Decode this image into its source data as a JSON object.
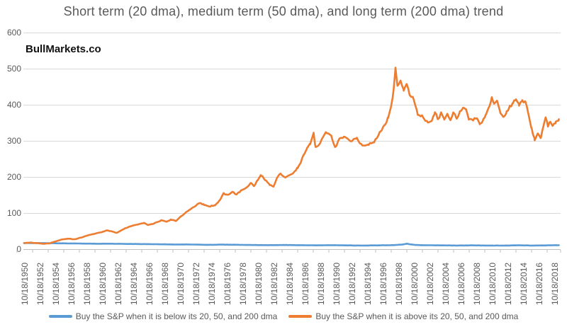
{
  "title": "Short term (20 dma), medium term (50 dma), and long term (200 dma) trend",
  "watermark": "BullMarkets.co",
  "colors": {
    "series_below": "#5B9BD5",
    "series_above": "#ED7D31",
    "gridline": "#D9D9D9",
    "axis_line": "#BFBFBF",
    "text": "#595959",
    "watermark_text": "#111111",
    "background": "#FFFFFF"
  },
  "chart_data": {
    "type": "line",
    "title": "Short term (20 dma), medium term (50 dma), and long term (200 dma) trend",
    "xlabel": "",
    "ylabel": "",
    "grid": true,
    "legend_position": "bottom",
    "y_axis": {
      "min": 0,
      "max": 600,
      "step": 100,
      "tick_labels": [
        "0",
        "100",
        "200",
        "300",
        "400",
        "500",
        "600"
      ]
    },
    "x_axis": {
      "first_label_year": 1950.8,
      "pixels_per_year": 11.0,
      "tick_interval_years": 2,
      "labels": [
        "10/18/1950",
        "10/18/1952",
        "10/18/1954",
        "10/18/1956",
        "10/18/1958",
        "10/18/1960",
        "10/18/1962",
        "10/18/1964",
        "10/18/1966",
        "10/18/1968",
        "10/18/1970",
        "10/18/1972",
        "10/18/1974",
        "10/18/1976",
        "10/18/1978",
        "10/18/1980",
        "10/18/1982",
        "10/18/1984",
        "10/18/1986",
        "10/18/1988",
        "10/18/1990",
        "10/18/1992",
        "10/18/1994",
        "10/18/1996",
        "10/18/1998",
        "10/18/2000",
        "10/18/2002",
        "10/18/2004",
        "10/18/2006",
        "10/18/2008",
        "10/18/2010",
        "10/18/2012",
        "10/18/2014",
        "10/18/2016",
        "10/18/2018"
      ]
    },
    "series": [
      {
        "name": "below",
        "label": "Buy the S&P when it is below its 20, 50, and 200 dma",
        "color": "#5B9BD5",
        "points": [
          [
            1950.7,
            17
          ],
          [
            1952,
            17
          ],
          [
            1954,
            16.5
          ],
          [
            1956,
            16
          ],
          [
            1958,
            15.5
          ],
          [
            1960,
            15
          ],
          [
            1962,
            15
          ],
          [
            1964,
            14.5
          ],
          [
            1966,
            14
          ],
          [
            1968,
            13.5
          ],
          [
            1970,
            13
          ],
          [
            1972,
            13
          ],
          [
            1974,
            12
          ],
          [
            1976,
            12.5
          ],
          [
            1978,
            12
          ],
          [
            1980,
            11.5
          ],
          [
            1982,
            11
          ],
          [
            1984,
            11.5
          ],
          [
            1986,
            11
          ],
          [
            1988,
            10.5
          ],
          [
            1990,
            11
          ],
          [
            1992,
            10.5
          ],
          [
            1994,
            10
          ],
          [
            1996,
            10.5
          ],
          [
            1998,
            11
          ],
          [
            1999.3,
            13
          ],
          [
            1999.8,
            15
          ],
          [
            2000.4,
            13
          ],
          [
            2001,
            11.5
          ],
          [
            2002,
            11
          ],
          [
            2004,
            10.5
          ],
          [
            2006,
            10
          ],
          [
            2008,
            10.5
          ],
          [
            2010,
            10
          ],
          [
            2012,
            10
          ],
          [
            2014,
            10.5
          ],
          [
            2016,
            10
          ],
          [
            2018,
            10.5
          ],
          [
            2019.3,
            11
          ]
        ]
      },
      {
        "name": "above",
        "label": "Buy the S&P when it is above its 20, 50, and 200 dma",
        "color": "#ED7D31",
        "points": [
          [
            1950.7,
            17
          ],
          [
            1951.5,
            18
          ],
          [
            1952.3,
            17
          ],
          [
            1953.2,
            15
          ],
          [
            1954.0,
            16
          ],
          [
            1954.8,
            22
          ],
          [
            1955.6,
            27
          ],
          [
            1956.3,
            29
          ],
          [
            1957.2,
            27
          ],
          [
            1958.0,
            32
          ],
          [
            1958.8,
            38
          ],
          [
            1959.6,
            42
          ],
          [
            1960.5,
            46
          ],
          [
            1961.3,
            52
          ],
          [
            1962.0,
            49
          ],
          [
            1962.6,
            45
          ],
          [
            1963.5,
            56
          ],
          [
            1964.4,
            64
          ],
          [
            1965.4,
            69
          ],
          [
            1966.1,
            73
          ],
          [
            1966.6,
            67
          ],
          [
            1967.5,
            72
          ],
          [
            1968.3,
            80
          ],
          [
            1969.0,
            76
          ],
          [
            1969.6,
            82
          ],
          [
            1970.2,
            78
          ],
          [
            1970.8,
            90
          ],
          [
            1971.5,
            103
          ],
          [
            1972.2,
            112
          ],
          [
            1973.2,
            128
          ],
          [
            1973.8,
            123
          ],
          [
            1974.4,
            118
          ],
          [
            1975.2,
            122
          ],
          [
            1975.8,
            135
          ],
          [
            1976.3,
            155
          ],
          [
            1976.8,
            150
          ],
          [
            1977.4,
            158
          ],
          [
            1978.0,
            152
          ],
          [
            1978.6,
            163
          ],
          [
            1979.2,
            170
          ],
          [
            1979.8,
            184
          ],
          [
            1980.2,
            175
          ],
          [
            1980.7,
            192
          ],
          [
            1981.1,
            205
          ],
          [
            1981.6,
            192
          ],
          [
            1982.2,
            178
          ],
          [
            1982.7,
            172
          ],
          [
            1983.1,
            195
          ],
          [
            1983.6,
            210
          ],
          [
            1984.2,
            198
          ],
          [
            1984.7,
            205
          ],
          [
            1985.2,
            210
          ],
          [
            1985.8,
            225
          ],
          [
            1986.2,
            240
          ],
          [
            1986.6,
            262
          ],
          [
            1987.0,
            280
          ],
          [
            1987.4,
            292
          ],
          [
            1987.85,
            320
          ],
          [
            1988.1,
            283
          ],
          [
            1988.7,
            295
          ],
          [
            1989.4,
            327
          ],
          [
            1990.1,
            315
          ],
          [
            1990.6,
            280
          ],
          [
            1991.2,
            305
          ],
          [
            1991.9,
            310
          ],
          [
            1992.6,
            300
          ],
          [
            1993.4,
            306
          ],
          [
            1994.1,
            286
          ],
          [
            1994.9,
            290
          ],
          [
            1995.6,
            298
          ],
          [
            1996.4,
            324
          ],
          [
            1997.0,
            345
          ],
          [
            1997.4,
            363
          ],
          [
            1997.8,
            396
          ],
          [
            1998.1,
            440
          ],
          [
            1998.35,
            500
          ],
          [
            1998.6,
            455
          ],
          [
            1999.0,
            465
          ],
          [
            1999.4,
            442
          ],
          [
            1999.8,
            455
          ],
          [
            2000.2,
            428
          ],
          [
            2000.7,
            415
          ],
          [
            2001.2,
            375
          ],
          [
            2002.0,
            363
          ],
          [
            2002.5,
            350
          ],
          [
            2003.0,
            355
          ],
          [
            2003.4,
            380
          ],
          [
            2003.8,
            360
          ],
          [
            2004.2,
            378
          ],
          [
            2004.6,
            358
          ],
          [
            2005.0,
            375
          ],
          [
            2005.4,
            360
          ],
          [
            2005.8,
            378
          ],
          [
            2006.2,
            362
          ],
          [
            2006.6,
            380
          ],
          [
            2007.0,
            393
          ],
          [
            2007.4,
            385
          ],
          [
            2007.8,
            360
          ],
          [
            2008.3,
            358
          ],
          [
            2008.8,
            362
          ],
          [
            2009.2,
            345
          ],
          [
            2009.6,
            360
          ],
          [
            2010.0,
            375
          ],
          [
            2010.4,
            398
          ],
          [
            2010.7,
            420
          ],
          [
            2011.0,
            402
          ],
          [
            2011.4,
            412
          ],
          [
            2011.8,
            377
          ],
          [
            2012.2,
            365
          ],
          [
            2012.6,
            380
          ],
          [
            2013.0,
            395
          ],
          [
            2013.4,
            405
          ],
          [
            2013.8,
            414
          ],
          [
            2014.2,
            400
          ],
          [
            2014.6,
            413
          ],
          [
            2015.0,
            408
          ],
          [
            2015.4,
            375
          ],
          [
            2015.8,
            335
          ],
          [
            2016.2,
            302
          ],
          [
            2016.6,
            320
          ],
          [
            2017.0,
            308
          ],
          [
            2017.3,
            340
          ],
          [
            2017.6,
            363
          ],
          [
            2017.9,
            342
          ],
          [
            2018.2,
            352
          ],
          [
            2018.5,
            342
          ],
          [
            2018.9,
            352
          ],
          [
            2019.3,
            360
          ]
        ]
      }
    ]
  }
}
